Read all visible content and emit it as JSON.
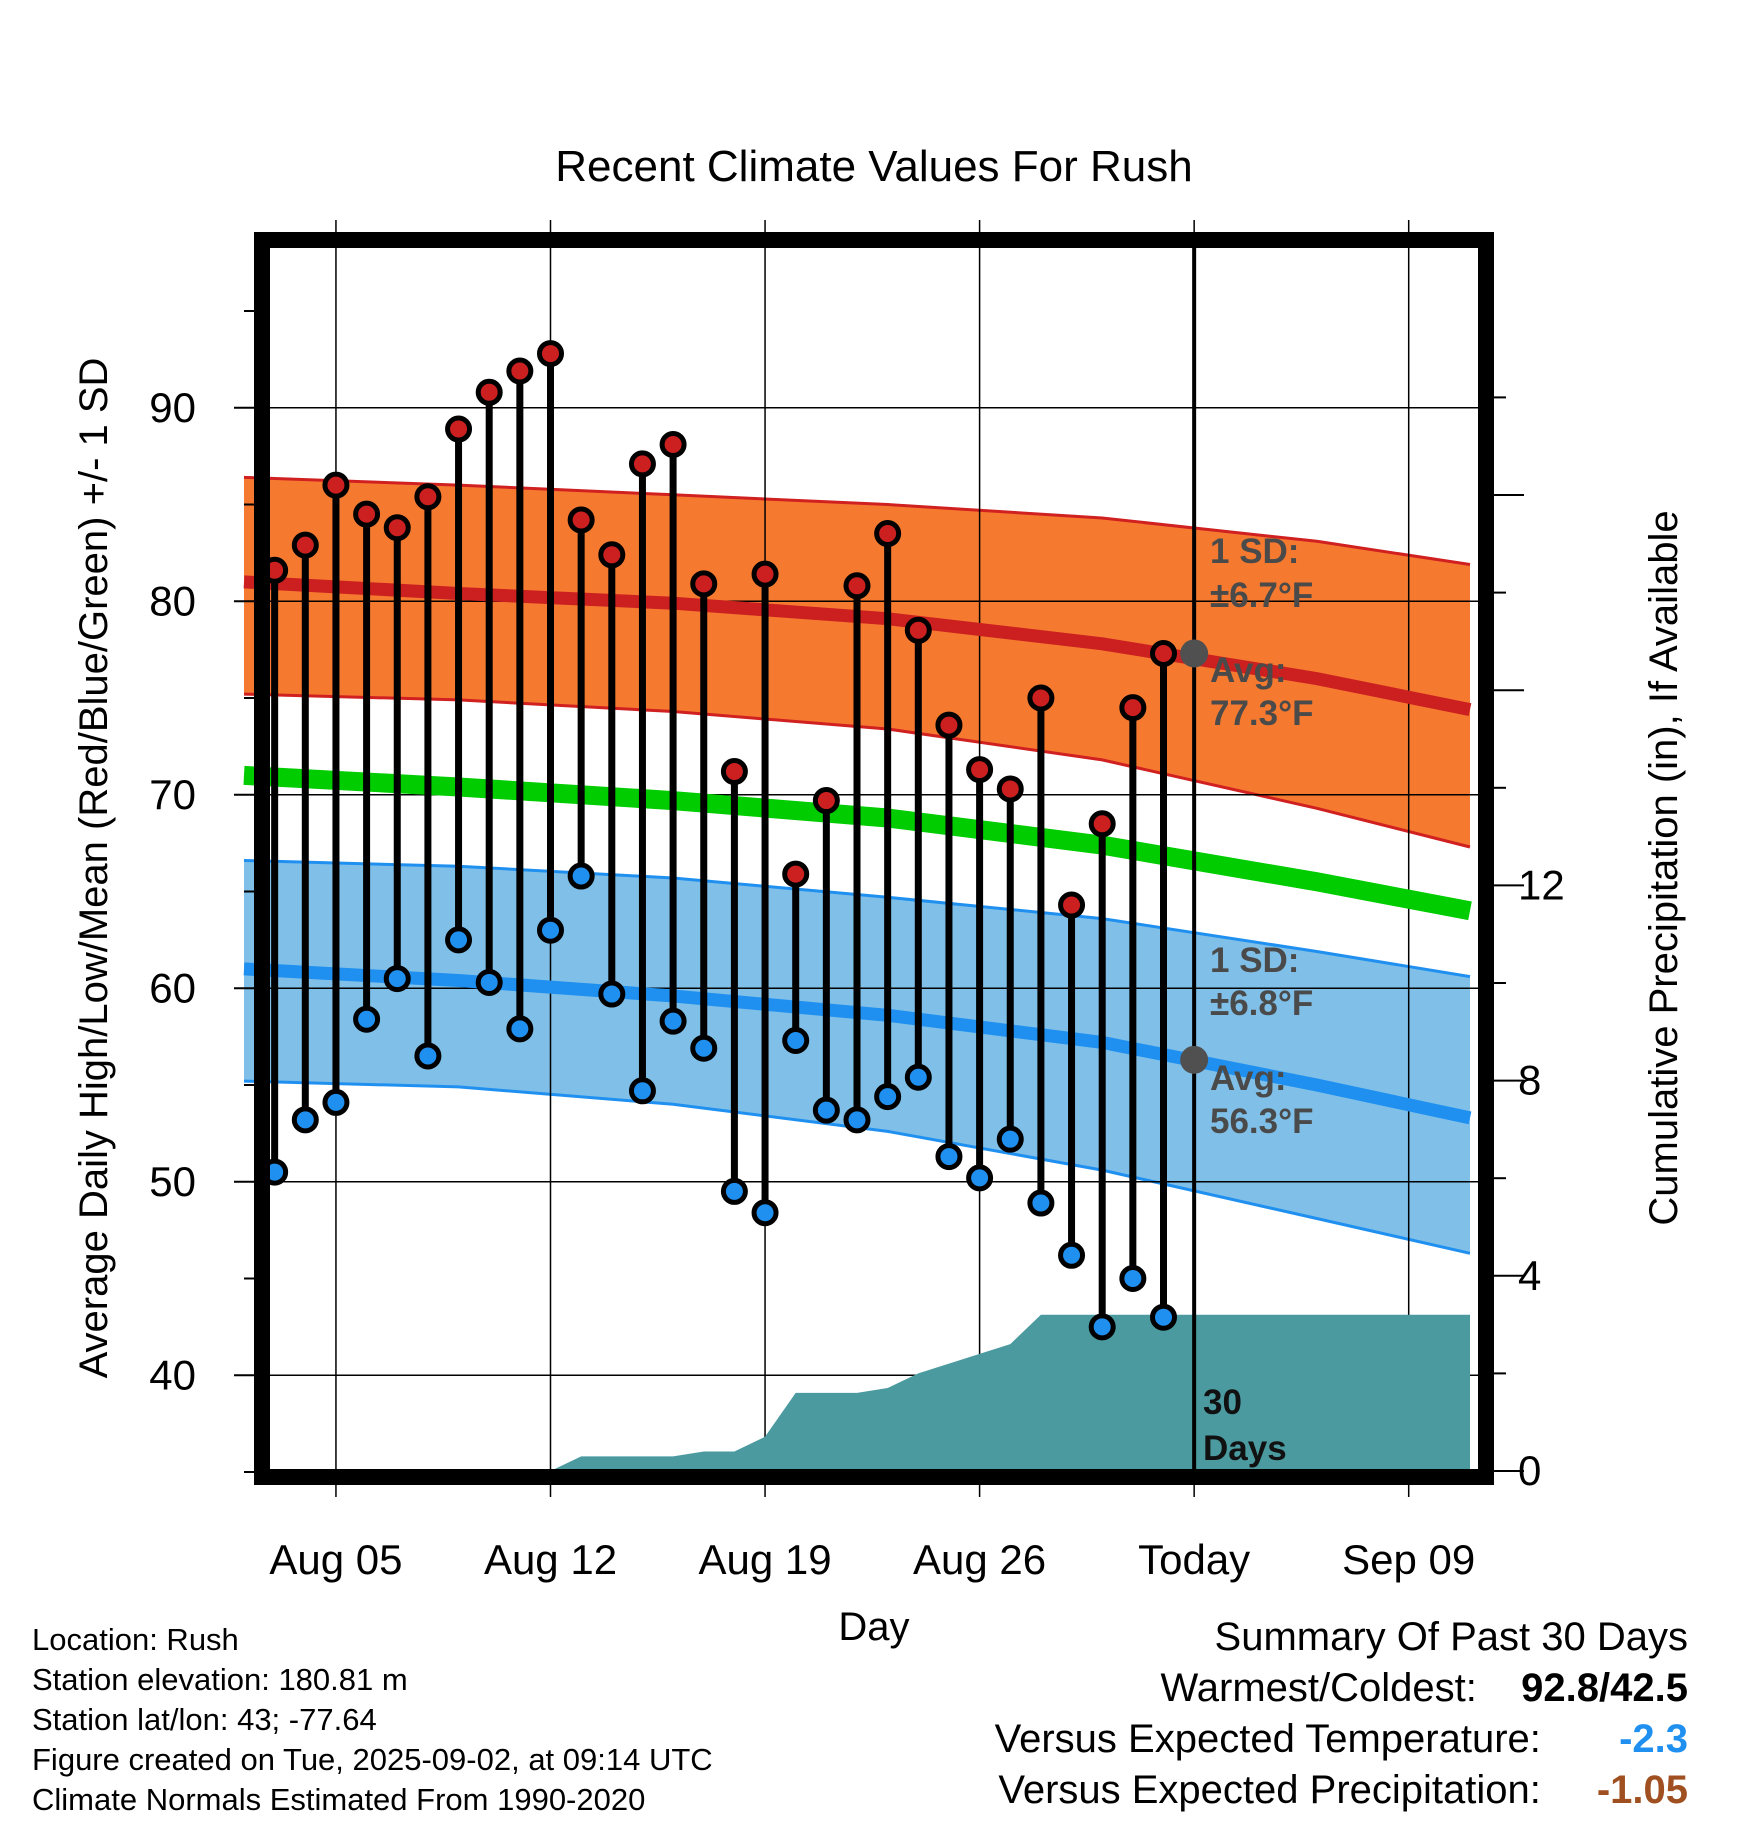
{
  "title": "Recent Climate Values For Rush",
  "axes": {
    "ylabel_left": "Average Daily High/Low/Mean (Red/Blue/Green) +/- 1 SD",
    "ylabel_right": "Cumulative Precipitation (in), If Available",
    "xlabel": "Day",
    "x_ticks": [
      "Aug 05",
      "Aug 12",
      "Aug 19",
      "Aug 26",
      "Today",
      "Sep 09"
    ],
    "y_ticks_left": [
      "40",
      "50",
      "60",
      "70",
      "80",
      "90"
    ],
    "y_ticks_right": [
      "0",
      "4",
      "8",
      "12"
    ]
  },
  "annotations": {
    "high_sd_label": "1 SD:",
    "high_sd_value": "±6.7°F",
    "high_avg_label": "Avg:",
    "high_avg_value": "77.3°F",
    "low_sd_label": "1 SD:",
    "low_sd_value": "±6.8°F",
    "low_avg_label": "Avg:",
    "low_avg_value": "56.3°F",
    "days_count": "30",
    "days_word": "Days"
  },
  "info": {
    "location": "Location: Rush",
    "elevation": "Station elevation: 180.81 m",
    "latlon": "Station lat/lon: 43; -77.64",
    "created": "Figure created on Tue, 2025-09-02, at 09:14 UTC",
    "normals": "Climate Normals Estimated From 1990-2020"
  },
  "summary": {
    "heading": "Summary Of Past 30 Days",
    "warmest_coldest_label": "Warmest/Coldest:",
    "warmest_coldest_value": "92.8/42.5",
    "temp_label": "Versus Expected Temperature:",
    "temp_value": "-2.3",
    "precip_label": "Versus Expected Precipitation:",
    "precip_value": "-1.05"
  },
  "colors": {
    "high_obs": "#cc2020",
    "low_obs": "#2090f0",
    "high_band": "#f57a30",
    "high_band_edge": "#d02020",
    "high_normal": "#cc2020",
    "low_band": "#80c0e8",
    "low_band_edge": "#2090f0",
    "low_normal": "#2090f0",
    "mean_normal": "#00cc00",
    "precip": "#4a9aa0",
    "avg_marker": "#505050",
    "temp_diff": "#2090f0",
    "precip_diff": "#a05020"
  },
  "chart_data": {
    "type": "line",
    "x_start": "Aug 02",
    "x_today": "Sep 02",
    "x_end": "Sep 11",
    "ylim": [
      35,
      98
    ],
    "ylim_right": [
      0,
      23.5
    ],
    "grid": true,
    "observed_daily": {
      "dates": [
        "Aug 03",
        "Aug 04",
        "Aug 05",
        "Aug 06",
        "Aug 07",
        "Aug 08",
        "Aug 09",
        "Aug 10",
        "Aug 11",
        "Aug 12",
        "Aug 13",
        "Aug 14",
        "Aug 15",
        "Aug 16",
        "Aug 17",
        "Aug 18",
        "Aug 19",
        "Aug 20",
        "Aug 21",
        "Aug 22",
        "Aug 23",
        "Aug 24",
        "Aug 25",
        "Aug 26",
        "Aug 27",
        "Aug 28",
        "Aug 29",
        "Aug 30",
        "Aug 31",
        "Sep 01"
      ],
      "high": [
        81.6,
        82.9,
        86.0,
        84.5,
        83.8,
        85.4,
        88.9,
        90.8,
        91.9,
        92.8,
        84.2,
        82.4,
        87.1,
        88.1,
        80.9,
        71.2,
        81.4,
        65.9,
        69.7,
        80.8,
        83.5,
        78.5,
        73.6,
        71.3,
        70.3,
        75.0,
        64.3,
        68.5,
        74.5,
        77.3
      ],
      "low": [
        50.5,
        53.2,
        54.1,
        58.4,
        60.5,
        56.5,
        62.5,
        60.3,
        57.9,
        63.0,
        65.8,
        59.7,
        54.7,
        58.3,
        56.9,
        49.5,
        48.4,
        57.3,
        53.7,
        53.2,
        54.4,
        55.4,
        51.3,
        50.2,
        52.2,
        48.9,
        46.2,
        42.5,
        45.0,
        43.0
      ]
    },
    "normal_high": {
      "dates": [
        "Aug 02",
        "Aug 09",
        "Aug 16",
        "Aug 23",
        "Aug 30",
        "Sep 06",
        "Sep 11"
      ],
      "avg": [
        81.0,
        80.4,
        79.9,
        79.1,
        77.8,
        76.0,
        74.4
      ],
      "sd_upper": [
        86.4,
        86.0,
        85.5,
        85.0,
        84.3,
        83.1,
        81.9
      ],
      "sd_lower": [
        75.2,
        74.9,
        74.3,
        73.4,
        71.8,
        69.3,
        67.3
      ]
    },
    "normal_low": {
      "dates": [
        "Aug 02",
        "Aug 09",
        "Aug 16",
        "Aug 23",
        "Aug 30",
        "Sep 06",
        "Sep 11"
      ],
      "avg": [
        61.0,
        60.4,
        59.6,
        58.6,
        57.2,
        55.0,
        53.3
      ],
      "sd_upper": [
        66.6,
        66.3,
        65.7,
        64.7,
        63.6,
        61.9,
        60.6
      ],
      "sd_lower": [
        55.2,
        54.9,
        54.0,
        52.6,
        50.6,
        48.1,
        46.3
      ]
    },
    "normal_mean": {
      "dates": [
        "Aug 02",
        "Aug 09",
        "Aug 16",
        "Aug 23",
        "Aug 30",
        "Sep 06",
        "Sep 11"
      ],
      "values": [
        71.0,
        70.4,
        69.7,
        68.8,
        67.4,
        65.5,
        64.0
      ]
    },
    "cumulative_precip": {
      "dates": [
        "Aug 12",
        "Aug 13",
        "Aug 16",
        "Aug 17",
        "Aug 18",
        "Aug 19",
        "Aug 20",
        "Aug 22",
        "Aug 23",
        "Aug 24",
        "Aug 26",
        "Aug 27",
        "Aug 28",
        "Sep 11"
      ],
      "values": [
        0,
        0.3,
        0.3,
        0.4,
        0.4,
        0.7,
        1.6,
        1.6,
        1.7,
        2.0,
        2.4,
        2.6,
        3.2,
        3.2
      ]
    },
    "today_high_avg": 77.3,
    "today_low_avg": 56.3
  }
}
